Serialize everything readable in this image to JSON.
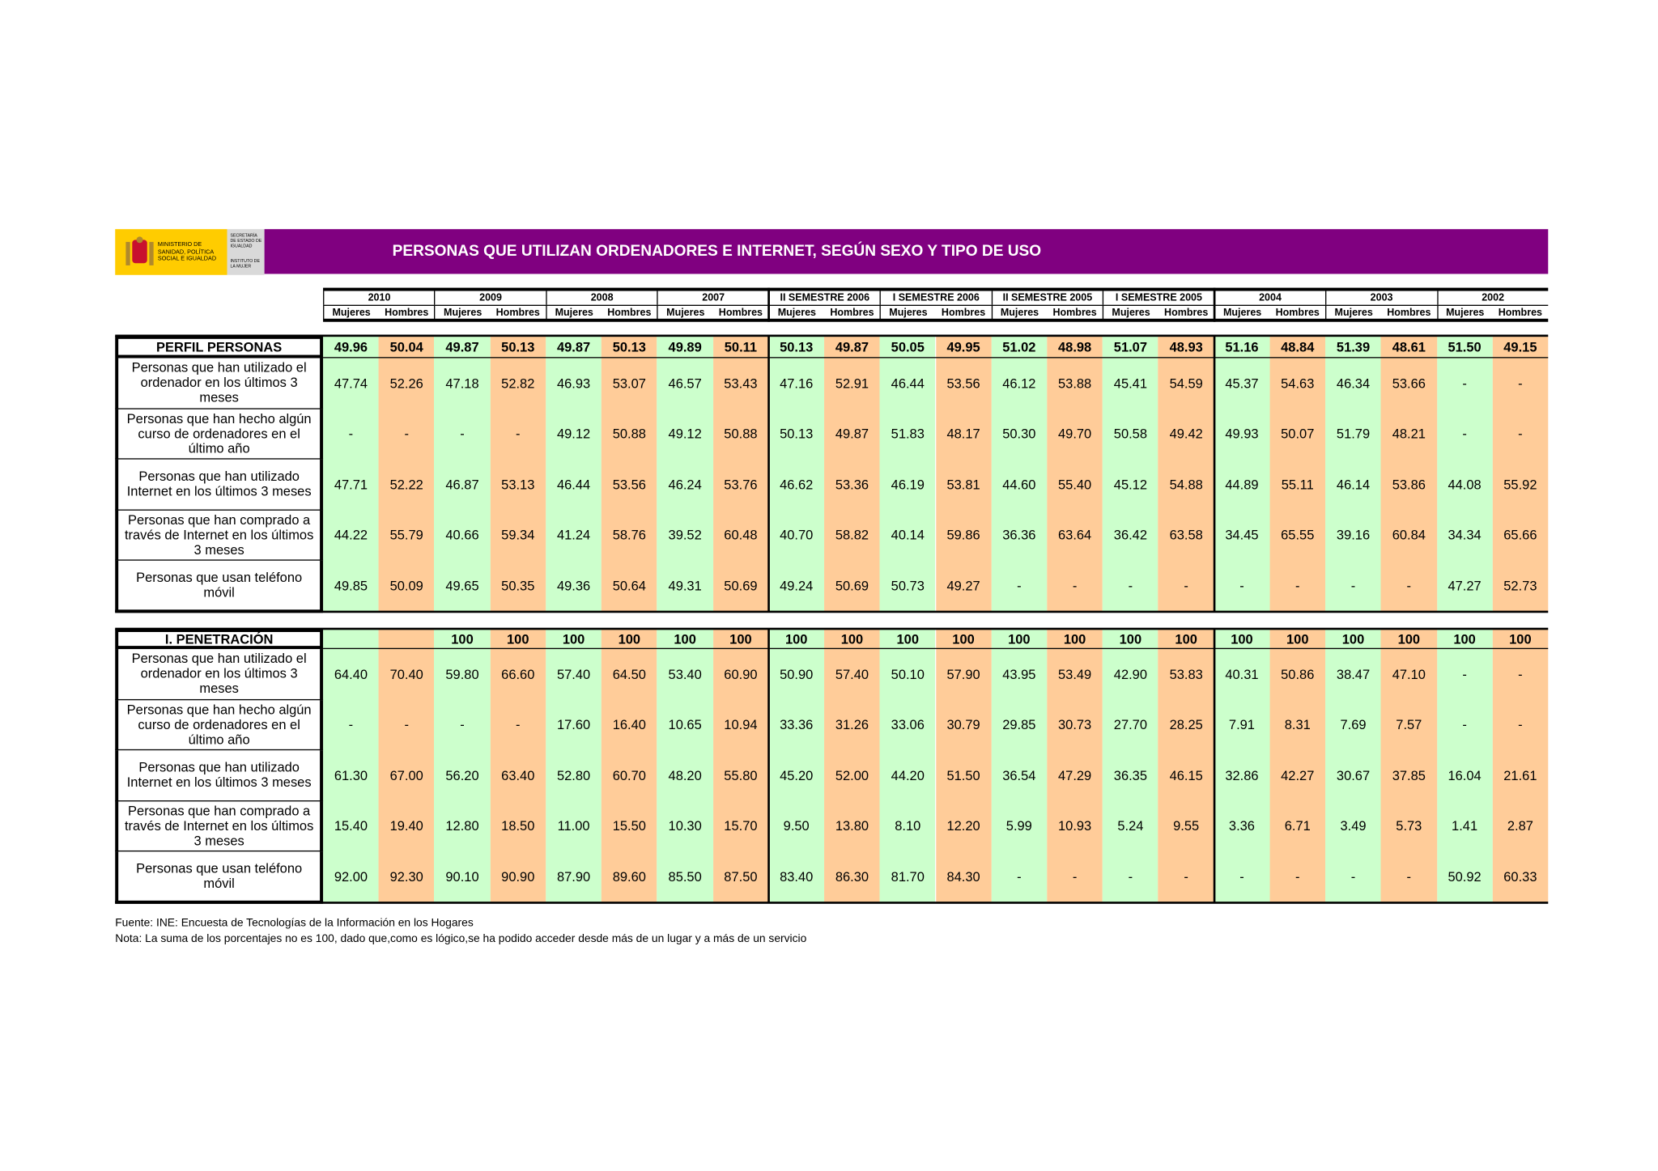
{
  "header": {
    "ministry": "MINISTERIO DE SANIDAD, POLÍTICA SOCIAL E IGUALDAD",
    "secretary": "SECRETARÍA DE ESTADO DE IGUALDAD",
    "institute": "INSTITUTO DE LA MUJER",
    "title": "PERSONAS QUE UTILIZAN ORDENADORES E INTERNET, SEGÚN SEXO Y TIPO DE USO"
  },
  "table": {
    "periods": [
      "2010",
      "2009",
      "2008",
      "2007",
      "II SEMESTRE 2006",
      "I SEMESTRE 2006",
      "II SEMESTRE 2005",
      "I SEMESTRE 2005",
      "2004",
      "2003",
      "2002"
    ],
    "sexes": [
      "Mujeres",
      "Hombres"
    ],
    "sections": [
      {
        "title": "PERFIL PERSONAS",
        "header_values": [
          "49.96",
          "50.04",
          "49.87",
          "50.13",
          "49.87",
          "50.13",
          "49.89",
          "50.11",
          "50.13",
          "49.87",
          "50.05",
          "49.95",
          "51.02",
          "48.98",
          "51.07",
          "48.93",
          "51.16",
          "48.84",
          "51.39",
          "48.61",
          "51.50",
          "49.15"
        ],
        "rows": [
          {
            "label": "Personas que han utilizado el ordenador en los últimos 3 meses",
            "values": [
              "47.74",
              "52.26",
              "47.18",
              "52.82",
              "46.93",
              "53.07",
              "46.57",
              "53.43",
              "47.16",
              "52.91",
              "46.44",
              "53.56",
              "46.12",
              "53.88",
              "45.41",
              "54.59",
              "45.37",
              "54.63",
              "46.34",
              "53.66",
              "-",
              "-"
            ]
          },
          {
            "label": "Personas que han hecho algún curso de ordenadores en el último año",
            "values": [
              "-",
              "-",
              "-",
              "-",
              "49.12",
              "50.88",
              "49.12",
              "50.88",
              "50.13",
              "49.87",
              "51.83",
              "48.17",
              "50.30",
              "49.70",
              "50.58",
              "49.42",
              "49.93",
              "50.07",
              "51.79",
              "48.21",
              "-",
              "-"
            ]
          },
          {
            "label": "Personas que han utilizado Internet en los últimos 3 meses",
            "values": [
              "47.71",
              "52.22",
              "46.87",
              "53.13",
              "46.44",
              "53.56",
              "46.24",
              "53.76",
              "46.62",
              "53.36",
              "46.19",
              "53.81",
              "44.60",
              "55.40",
              "45.12",
              "54.88",
              "44.89",
              "55.11",
              "46.14",
              "53.86",
              "44.08",
              "55.92"
            ]
          },
          {
            "label": "Personas que han comprado a través de Internet en los últimos 3 meses",
            "values": [
              "44.22",
              "55.79",
              "40.66",
              "59.34",
              "41.24",
              "58.76",
              "39.52",
              "60.48",
              "40.70",
              "58.82",
              "40.14",
              "59.86",
              "36.36",
              "63.64",
              "36.42",
              "63.58",
              "34.45",
              "65.55",
              "39.16",
              "60.84",
              "34.34",
              "65.66"
            ]
          },
          {
            "label": "Personas que usan teléfono móvil",
            "values": [
              "49.85",
              "50.09",
              "49.65",
              "50.35",
              "49.36",
              "50.64",
              "49.31",
              "50.69",
              "49.24",
              "50.69",
              "50.73",
              "49.27",
              "-",
              "-",
              "-",
              "-",
              "-",
              "-",
              "-",
              "-",
              "47.27",
              "52.73"
            ]
          }
        ]
      },
      {
        "title": "I. PENETRACIÓN",
        "header_values": [
          null,
          null,
          "100",
          "100",
          "100",
          "100",
          "100",
          "100",
          "100",
          "100",
          "100",
          "100",
          "100",
          "100",
          "100",
          "100",
          "100",
          "100",
          "100",
          "100",
          "100",
          "100"
        ],
        "rows": [
          {
            "label": "Personas que han utilizado el ordenador en los últimos 3 meses",
            "values": [
              "64.40",
              "70.40",
              "59.80",
              "66.60",
              "57.40",
              "64.50",
              "53.40",
              "60.90",
              "50.90",
              "57.40",
              "50.10",
              "57.90",
              "43.95",
              "53.49",
              "42.90",
              "53.83",
              "40.31",
              "50.86",
              "38.47",
              "47.10",
              "-",
              "-"
            ]
          },
          {
            "label": "Personas que han hecho algún curso de ordenadores en el último año",
            "values": [
              "-",
              "-",
              "-",
              "-",
              "17.60",
              "16.40",
              "10.65",
              "10.94",
              "33.36",
              "31.26",
              "33.06",
              "30.79",
              "29.85",
              "30.73",
              "27.70",
              "28.25",
              "7.91",
              "8.31",
              "7.69",
              "7.57",
              "-",
              "-"
            ]
          },
          {
            "label": "Personas que han utilizado Internet en los últimos 3 meses",
            "values": [
              "61.30",
              "67.00",
              "56.20",
              "63.40",
              "52.80",
              "60.70",
              "48.20",
              "55.80",
              "45.20",
              "52.00",
              "44.20",
              "51.50",
              "36.54",
              "47.29",
              "36.35",
              "46.15",
              "32.86",
              "42.27",
              "30.67",
              "37.85",
              "16.04",
              "21.61"
            ]
          },
          {
            "label": "Personas que han comprado a través de Internet en los últimos 3 meses",
            "values": [
              "15.40",
              "19.40",
              "12.80",
              "18.50",
              "11.00",
              "15.50",
              "10.30",
              "15.70",
              "9.50",
              "13.80",
              "8.10",
              "12.20",
              "5.99",
              "10.93",
              "5.24",
              "9.55",
              "3.36",
              "6.71",
              "3.49",
              "5.73",
              "1.41",
              "2.87"
            ]
          },
          {
            "label": "Personas que usan teléfono móvil",
            "values": [
              "92.00",
              "92.30",
              "90.10",
              "90.90",
              "87.90",
              "89.60",
              "85.50",
              "87.50",
              "83.40",
              "86.30",
              "81.70",
              "84.30",
              "-",
              "-",
              "-",
              "-",
              "-",
              "-",
              "-",
              "-",
              "50.92",
              "60.33"
            ]
          }
        ]
      }
    ]
  },
  "notes": [
    "Fuente: INE: Encuesta de Tecnologías de la Información en los Hogares",
    "Nota: La suma de los porcentajes no es 100, dado que,como es lógico,se ha podido acceder desde más de un lugar y a más de un servicio"
  ]
}
